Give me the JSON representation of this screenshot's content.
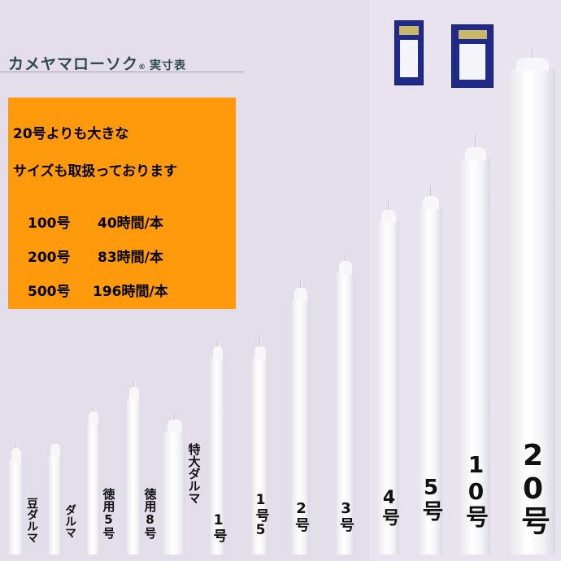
{
  "header": {
    "title": "カメヤマローソク",
    "registered": "®",
    "subtitle": "実寸表"
  },
  "info_box": {
    "line1": "20号よりも大きな",
    "line2": "サイズも取扱っております",
    "rows": [
      {
        "size": "100号",
        "time": "40時間/本"
      },
      {
        "size": "200号",
        "time": "83時間/本"
      },
      {
        "size": "500号",
        "time": "196時間/本"
      }
    ],
    "background_color": "#ff9a0c"
  },
  "candles": [
    {
      "label": "豆ダルマ"
    },
    {
      "label": "ダルマ"
    },
    {
      "label": "徳用5号"
    },
    {
      "label": "徳用8号"
    },
    {
      "label": "特大ダルマ"
    },
    {
      "label": "1号"
    },
    {
      "label": "1号5"
    },
    {
      "label": "2号"
    },
    {
      "label": "3号"
    },
    {
      "label": "4号"
    },
    {
      "label": "5号"
    },
    {
      "label": "10号"
    },
    {
      "label": "20号"
    }
  ]
}
